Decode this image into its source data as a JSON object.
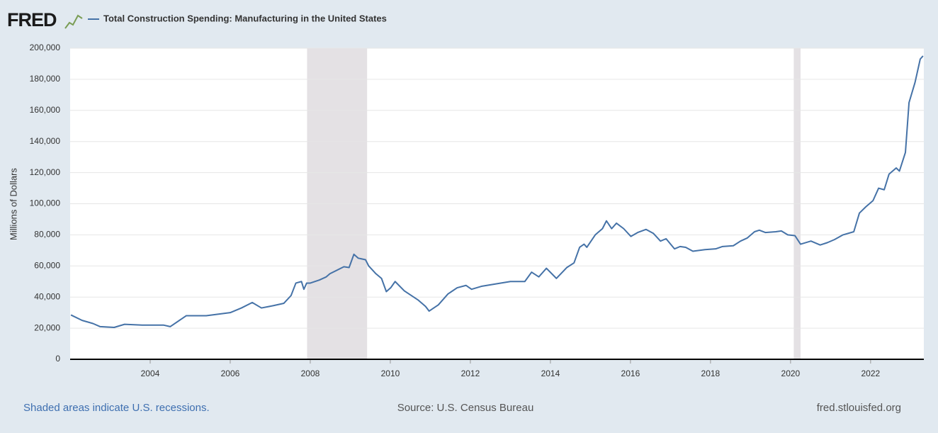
{
  "chart_data": {
    "type": "line",
    "logo": "FRED",
    "title": "Total Construction Spending: Manufacturing in the United States",
    "y_label": "Millions of Dollars",
    "recession_note": "Shaded areas indicate U.S. recessions.",
    "source": "Source: U.S. Census Bureau",
    "site": "fred.stlouisfed.org",
    "recessions": [
      [
        2007.92,
        2009.42
      ],
      [
        2020.08,
        2020.25
      ]
    ],
    "xlim": [
      2002.0,
      2023.33
    ],
    "xticks": [
      2004,
      2006,
      2008,
      2010,
      2012,
      2014,
      2016,
      2018,
      2020,
      2022
    ],
    "ylim": [
      0,
      200000
    ],
    "yticks": [
      0,
      {
        "value": 20000,
        "label": "20,000"
      },
      {
        "value": 40000,
        "label": "40,000"
      },
      {
        "value": 60000,
        "label": "60,000"
      },
      {
        "value": 80000,
        "label": "80,000"
      },
      {
        "value": 100000,
        "label": "100,000"
      },
      {
        "value": 120000,
        "label": "120,000"
      },
      {
        "value": 140000,
        "label": "140,000"
      },
      {
        "value": 160000,
        "label": "160,000"
      },
      {
        "value": 180000,
        "label": "180,000"
      },
      {
        "value": 200000,
        "label": "200,000"
      }
    ],
    "grid": true,
    "x": [
      2002.02,
      2002.3,
      2002.57,
      2002.75,
      2003.1,
      2003.36,
      2003.8,
      2004.33,
      2004.5,
      2004.9,
      2005.4,
      2006.0,
      2006.28,
      2006.55,
      2006.78,
      2007.08,
      2007.34,
      2007.52,
      2007.64,
      2007.78,
      2007.84,
      2007.91,
      2008.0,
      2008.23,
      2008.4,
      2008.49,
      2008.84,
      2008.97,
      2009.09,
      2009.2,
      2009.38,
      2009.46,
      2009.64,
      2009.78,
      2009.9,
      2010.01,
      2010.12,
      2010.35,
      2010.7,
      2010.88,
      2010.97,
      2011.2,
      2011.44,
      2011.67,
      2011.89,
      2012.03,
      2012.29,
      2012.65,
      2013.0,
      2013.36,
      2013.53,
      2013.71,
      2013.9,
      2014.15,
      2014.41,
      2014.59,
      2014.73,
      2014.84,
      2014.91,
      2015.12,
      2015.3,
      2015.4,
      2015.53,
      2015.65,
      2015.83,
      2016.01,
      2016.18,
      2016.39,
      2016.57,
      2016.75,
      2016.89,
      2017.1,
      2017.24,
      2017.38,
      2017.56,
      2017.86,
      2018.13,
      2018.3,
      2018.57,
      2018.75,
      2018.92,
      2019.1,
      2019.22,
      2019.37,
      2019.63,
      2019.77,
      2019.93,
      2020.11,
      2020.25,
      2020.51,
      2020.74,
      2020.92,
      2021.1,
      2021.31,
      2021.58,
      2021.72,
      2021.88,
      2022.06,
      2022.2,
      2022.34,
      2022.46,
      2022.64,
      2022.72,
      2022.87,
      2022.96,
      2023.11,
      2023.24,
      2023.31
    ],
    "series": [
      {
        "name": "Total Construction Spending: Manufacturing in the United States",
        "color": "#4572a7",
        "values": [
          28500,
          25000,
          23000,
          21000,
          20500,
          22500,
          22000,
          22000,
          21000,
          28000,
          28000,
          30000,
          33000,
          36500,
          33000,
          34500,
          36000,
          41000,
          49000,
          50000,
          45000,
          49000,
          49000,
          51000,
          53000,
          55000,
          59500,
          59000,
          67500,
          65000,
          64000,
          60000,
          55000,
          52000,
          43500,
          46000,
          50000,
          44000,
          38000,
          34000,
          31000,
          35000,
          42000,
          46000,
          47500,
          45000,
          47000,
          48500,
          50000,
          50000,
          56000,
          53000,
          58500,
          52000,
          59000,
          62000,
          72000,
          74000,
          72000,
          80000,
          84000,
          89000,
          84000,
          87500,
          84000,
          79000,
          81500,
          83500,
          81000,
          76000,
          77500,
          71000,
          72500,
          72000,
          69500,
          70500,
          71000,
          72500,
          73000,
          76000,
          78000,
          82000,
          83000,
          81500,
          82000,
          82500,
          80000,
          79500,
          74000,
          76000,
          73500,
          75000,
          77000,
          80000,
          82000,
          94000,
          98000,
          102000,
          110000,
          109000,
          119000,
          123000,
          121000,
          133000,
          165000,
          178000,
          193000,
          195000
        ]
      }
    ]
  }
}
